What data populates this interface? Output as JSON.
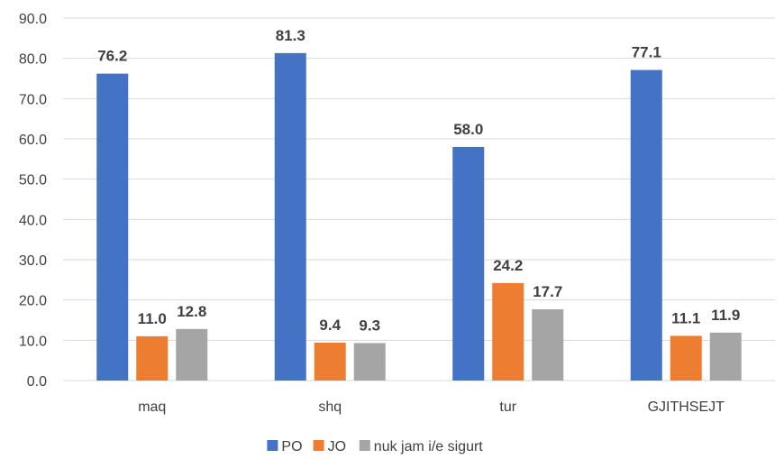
{
  "chart_data": {
    "type": "bar",
    "categories": [
      "maq",
      "shq",
      "tur",
      "GJITHSEJT"
    ],
    "series": [
      {
        "name": "PO",
        "values": [
          76.2,
          81.3,
          58.0,
          77.1
        ],
        "color": "#4472c4"
      },
      {
        "name": "JO",
        "values": [
          11.0,
          9.4,
          24.2,
          11.1
        ],
        "color": "#ed7d31"
      },
      {
        "name": "nuk jam i/e sigurt",
        "values": [
          12.8,
          9.3,
          17.7,
          11.9
        ],
        "color": "#a5a5a5"
      }
    ],
    "ylim": [
      0,
      90
    ],
    "yticks": [
      "0.0",
      "10.0",
      "20.0",
      "30.0",
      "40.0",
      "50.0",
      "60.0",
      "70.0",
      "80.0",
      "90.0"
    ],
    "grid": true,
    "legend": "bottom"
  }
}
